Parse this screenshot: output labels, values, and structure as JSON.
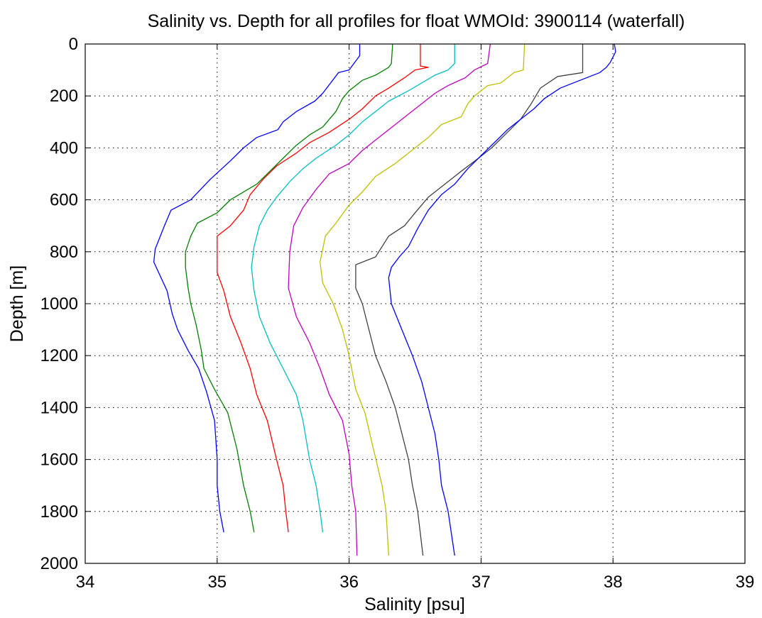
{
  "chart_data": {
    "type": "line",
    "title": "Salinity vs. Depth for all profiles for float WMOId: 3900114 (waterfall)",
    "xlabel": "Salinity [psu]",
    "ylabel": "Depth [m]",
    "xlim": [
      34,
      39
    ],
    "ylim": [
      0,
      2000
    ],
    "y_reversed": true,
    "grid": true,
    "x_ticks": [
      34,
      35,
      36,
      37,
      38,
      39
    ],
    "y_ticks": [
      0,
      200,
      400,
      600,
      800,
      1000,
      1200,
      1400,
      1600,
      1800,
      2000
    ],
    "series": [
      {
        "color": "#0000ff",
        "points": [
          [
            36.08,
            0
          ],
          [
            36.08,
            45
          ],
          [
            36.0,
            100
          ],
          [
            35.92,
            110
          ],
          [
            35.86,
            150
          ],
          [
            35.8,
            190
          ],
          [
            35.74,
            220
          ],
          [
            35.6,
            260
          ],
          [
            35.5,
            300
          ],
          [
            35.46,
            330
          ],
          [
            35.3,
            360
          ],
          [
            35.2,
            400
          ],
          [
            35.1,
            450
          ],
          [
            34.95,
            520
          ],
          [
            34.8,
            600
          ],
          [
            34.65,
            640
          ],
          [
            34.6,
            700
          ],
          [
            34.53,
            790
          ],
          [
            34.52,
            840
          ],
          [
            34.62,
            950
          ],
          [
            34.66,
            1040
          ],
          [
            34.7,
            1100
          ],
          [
            34.78,
            1180
          ],
          [
            34.86,
            1250
          ],
          [
            34.92,
            1340
          ],
          [
            34.98,
            1450
          ],
          [
            35.0,
            1600
          ],
          [
            35.0,
            1700
          ],
          [
            35.02,
            1800
          ],
          [
            35.05,
            1880
          ]
        ]
      },
      {
        "color": "#008000",
        "points": [
          [
            36.33,
            0
          ],
          [
            36.32,
            75
          ],
          [
            36.3,
            90
          ],
          [
            36.2,
            120
          ],
          [
            36.1,
            140
          ],
          [
            36.0,
            180
          ],
          [
            35.95,
            210
          ],
          [
            35.9,
            260
          ],
          [
            35.8,
            320
          ],
          [
            35.7,
            350
          ],
          [
            35.6,
            390
          ],
          [
            35.5,
            440
          ],
          [
            35.4,
            490
          ],
          [
            35.3,
            540
          ],
          [
            35.1,
            600
          ],
          [
            35.0,
            650
          ],
          [
            34.85,
            690
          ],
          [
            34.8,
            740
          ],
          [
            34.76,
            800
          ],
          [
            34.76,
            860
          ],
          [
            34.78,
            940
          ],
          [
            34.8,
            1000
          ],
          [
            34.84,
            1080
          ],
          [
            34.88,
            1180
          ],
          [
            34.9,
            1250
          ],
          [
            34.98,
            1330
          ],
          [
            35.08,
            1420
          ],
          [
            35.15,
            1560
          ],
          [
            35.2,
            1700
          ],
          [
            35.25,
            1800
          ],
          [
            35.28,
            1880
          ]
        ]
      },
      {
        "color": "#ff0000",
        "points": [
          [
            36.54,
            0
          ],
          [
            36.54,
            85
          ],
          [
            36.6,
            90
          ],
          [
            36.5,
            100
          ],
          [
            36.42,
            130
          ],
          [
            36.3,
            170
          ],
          [
            36.2,
            200
          ],
          [
            36.1,
            250
          ],
          [
            36.0,
            290
          ],
          [
            35.85,
            340
          ],
          [
            35.7,
            380
          ],
          [
            35.6,
            420
          ],
          [
            35.45,
            470
          ],
          [
            35.35,
            520
          ],
          [
            35.25,
            580
          ],
          [
            35.2,
            640
          ],
          [
            35.1,
            700
          ],
          [
            35.0,
            740
          ],
          [
            35.0,
            800
          ],
          [
            35.0,
            880
          ],
          [
            35.05,
            950
          ],
          [
            35.1,
            1050
          ],
          [
            35.18,
            1150
          ],
          [
            35.25,
            1250
          ],
          [
            35.3,
            1350
          ],
          [
            35.38,
            1450
          ],
          [
            35.45,
            1600
          ],
          [
            35.5,
            1700
          ],
          [
            35.52,
            1800
          ],
          [
            35.54,
            1880
          ]
        ]
      },
      {
        "color": "#00bfbf",
        "points": [
          [
            36.8,
            0
          ],
          [
            36.8,
            75
          ],
          [
            36.75,
            100
          ],
          [
            36.65,
            120
          ],
          [
            36.55,
            150
          ],
          [
            36.45,
            180
          ],
          [
            36.3,
            220
          ],
          [
            36.2,
            260
          ],
          [
            36.1,
            300
          ],
          [
            36.0,
            350
          ],
          [
            35.9,
            390
          ],
          [
            35.75,
            440
          ],
          [
            35.65,
            480
          ],
          [
            35.55,
            530
          ],
          [
            35.45,
            590
          ],
          [
            35.38,
            640
          ],
          [
            35.32,
            700
          ],
          [
            35.28,
            780
          ],
          [
            35.26,
            860
          ],
          [
            35.28,
            950
          ],
          [
            35.32,
            1050
          ],
          [
            35.4,
            1150
          ],
          [
            35.5,
            1250
          ],
          [
            35.6,
            1350
          ],
          [
            35.65,
            1450
          ],
          [
            35.7,
            1600
          ],
          [
            35.75,
            1700
          ],
          [
            35.78,
            1800
          ],
          [
            35.8,
            1880
          ]
        ]
      },
      {
        "color": "#bf00bf",
        "points": [
          [
            37.07,
            0
          ],
          [
            37.05,
            75
          ],
          [
            36.95,
            100
          ],
          [
            36.88,
            130
          ],
          [
            36.75,
            160
          ],
          [
            36.65,
            190
          ],
          [
            36.55,
            230
          ],
          [
            36.45,
            270
          ],
          [
            36.35,
            310
          ],
          [
            36.2,
            370
          ],
          [
            36.1,
            410
          ],
          [
            36.0,
            460
          ],
          [
            35.85,
            500
          ],
          [
            35.75,
            560
          ],
          [
            35.65,
            630
          ],
          [
            35.58,
            700
          ],
          [
            35.55,
            800
          ],
          [
            35.54,
            940
          ],
          [
            35.6,
            1050
          ],
          [
            35.7,
            1150
          ],
          [
            35.78,
            1250
          ],
          [
            35.85,
            1350
          ],
          [
            35.95,
            1450
          ],
          [
            36.0,
            1580
          ],
          [
            36.02,
            1700
          ],
          [
            36.05,
            1800
          ],
          [
            36.06,
            1970
          ]
        ]
      },
      {
        "color": "#bfbf00",
        "points": [
          [
            37.33,
            0
          ],
          [
            37.32,
            100
          ],
          [
            37.25,
            110
          ],
          [
            37.15,
            150
          ],
          [
            37.05,
            160
          ],
          [
            36.95,
            200
          ],
          [
            36.9,
            230
          ],
          [
            36.85,
            280
          ],
          [
            36.7,
            310
          ],
          [
            36.6,
            360
          ],
          [
            36.5,
            400
          ],
          [
            36.35,
            460
          ],
          [
            36.2,
            510
          ],
          [
            36.1,
            570
          ],
          [
            36.0,
            620
          ],
          [
            35.9,
            690
          ],
          [
            35.82,
            740
          ],
          [
            35.78,
            840
          ],
          [
            35.8,
            920
          ],
          [
            35.88,
            1000
          ],
          [
            35.95,
            1100
          ],
          [
            36.0,
            1200
          ],
          [
            36.05,
            1330
          ],
          [
            36.12,
            1420
          ],
          [
            36.18,
            1550
          ],
          [
            36.25,
            1700
          ],
          [
            36.28,
            1800
          ],
          [
            36.3,
            1970
          ]
        ]
      },
      {
        "color": "#404040",
        "points": [
          [
            37.77,
            0
          ],
          [
            37.77,
            110
          ],
          [
            37.58,
            125
          ],
          [
            37.45,
            170
          ],
          [
            37.38,
            230
          ],
          [
            37.3,
            290
          ],
          [
            37.2,
            340
          ],
          [
            37.08,
            400
          ],
          [
            36.98,
            440
          ],
          [
            36.85,
            490
          ],
          [
            36.7,
            550
          ],
          [
            36.6,
            590
          ],
          [
            36.5,
            650
          ],
          [
            36.42,
            700
          ],
          [
            36.3,
            740
          ],
          [
            36.2,
            820
          ],
          [
            36.05,
            850
          ],
          [
            36.05,
            940
          ],
          [
            36.1,
            1000
          ],
          [
            36.15,
            1100
          ],
          [
            36.2,
            1200
          ],
          [
            36.28,
            1300
          ],
          [
            36.35,
            1400
          ],
          [
            36.4,
            1500
          ],
          [
            36.45,
            1600
          ],
          [
            36.48,
            1700
          ],
          [
            36.52,
            1800
          ],
          [
            36.56,
            1970
          ]
        ]
      },
      {
        "color": "#0000ff",
        "points": [
          [
            38.01,
            0
          ],
          [
            38.02,
            30
          ],
          [
            37.98,
            70
          ],
          [
            37.95,
            90
          ],
          [
            37.9,
            110
          ],
          [
            37.75,
            140
          ],
          [
            37.6,
            170
          ],
          [
            37.48,
            210
          ],
          [
            37.4,
            250
          ],
          [
            37.3,
            290
          ],
          [
            37.2,
            330
          ],
          [
            37.1,
            380
          ],
          [
            37.0,
            430
          ],
          [
            36.9,
            480
          ],
          [
            36.8,
            540
          ],
          [
            36.7,
            580
          ],
          [
            36.6,
            640
          ],
          [
            36.52,
            710
          ],
          [
            36.45,
            780
          ],
          [
            36.38,
            820
          ],
          [
            36.32,
            860
          ],
          [
            36.3,
            900
          ],
          [
            36.32,
            1000
          ],
          [
            36.4,
            1100
          ],
          [
            36.48,
            1200
          ],
          [
            36.55,
            1300
          ],
          [
            36.6,
            1400
          ],
          [
            36.65,
            1500
          ],
          [
            36.68,
            1600
          ],
          [
            36.7,
            1700
          ],
          [
            36.75,
            1800
          ],
          [
            36.8,
            1970
          ]
        ]
      }
    ]
  }
}
